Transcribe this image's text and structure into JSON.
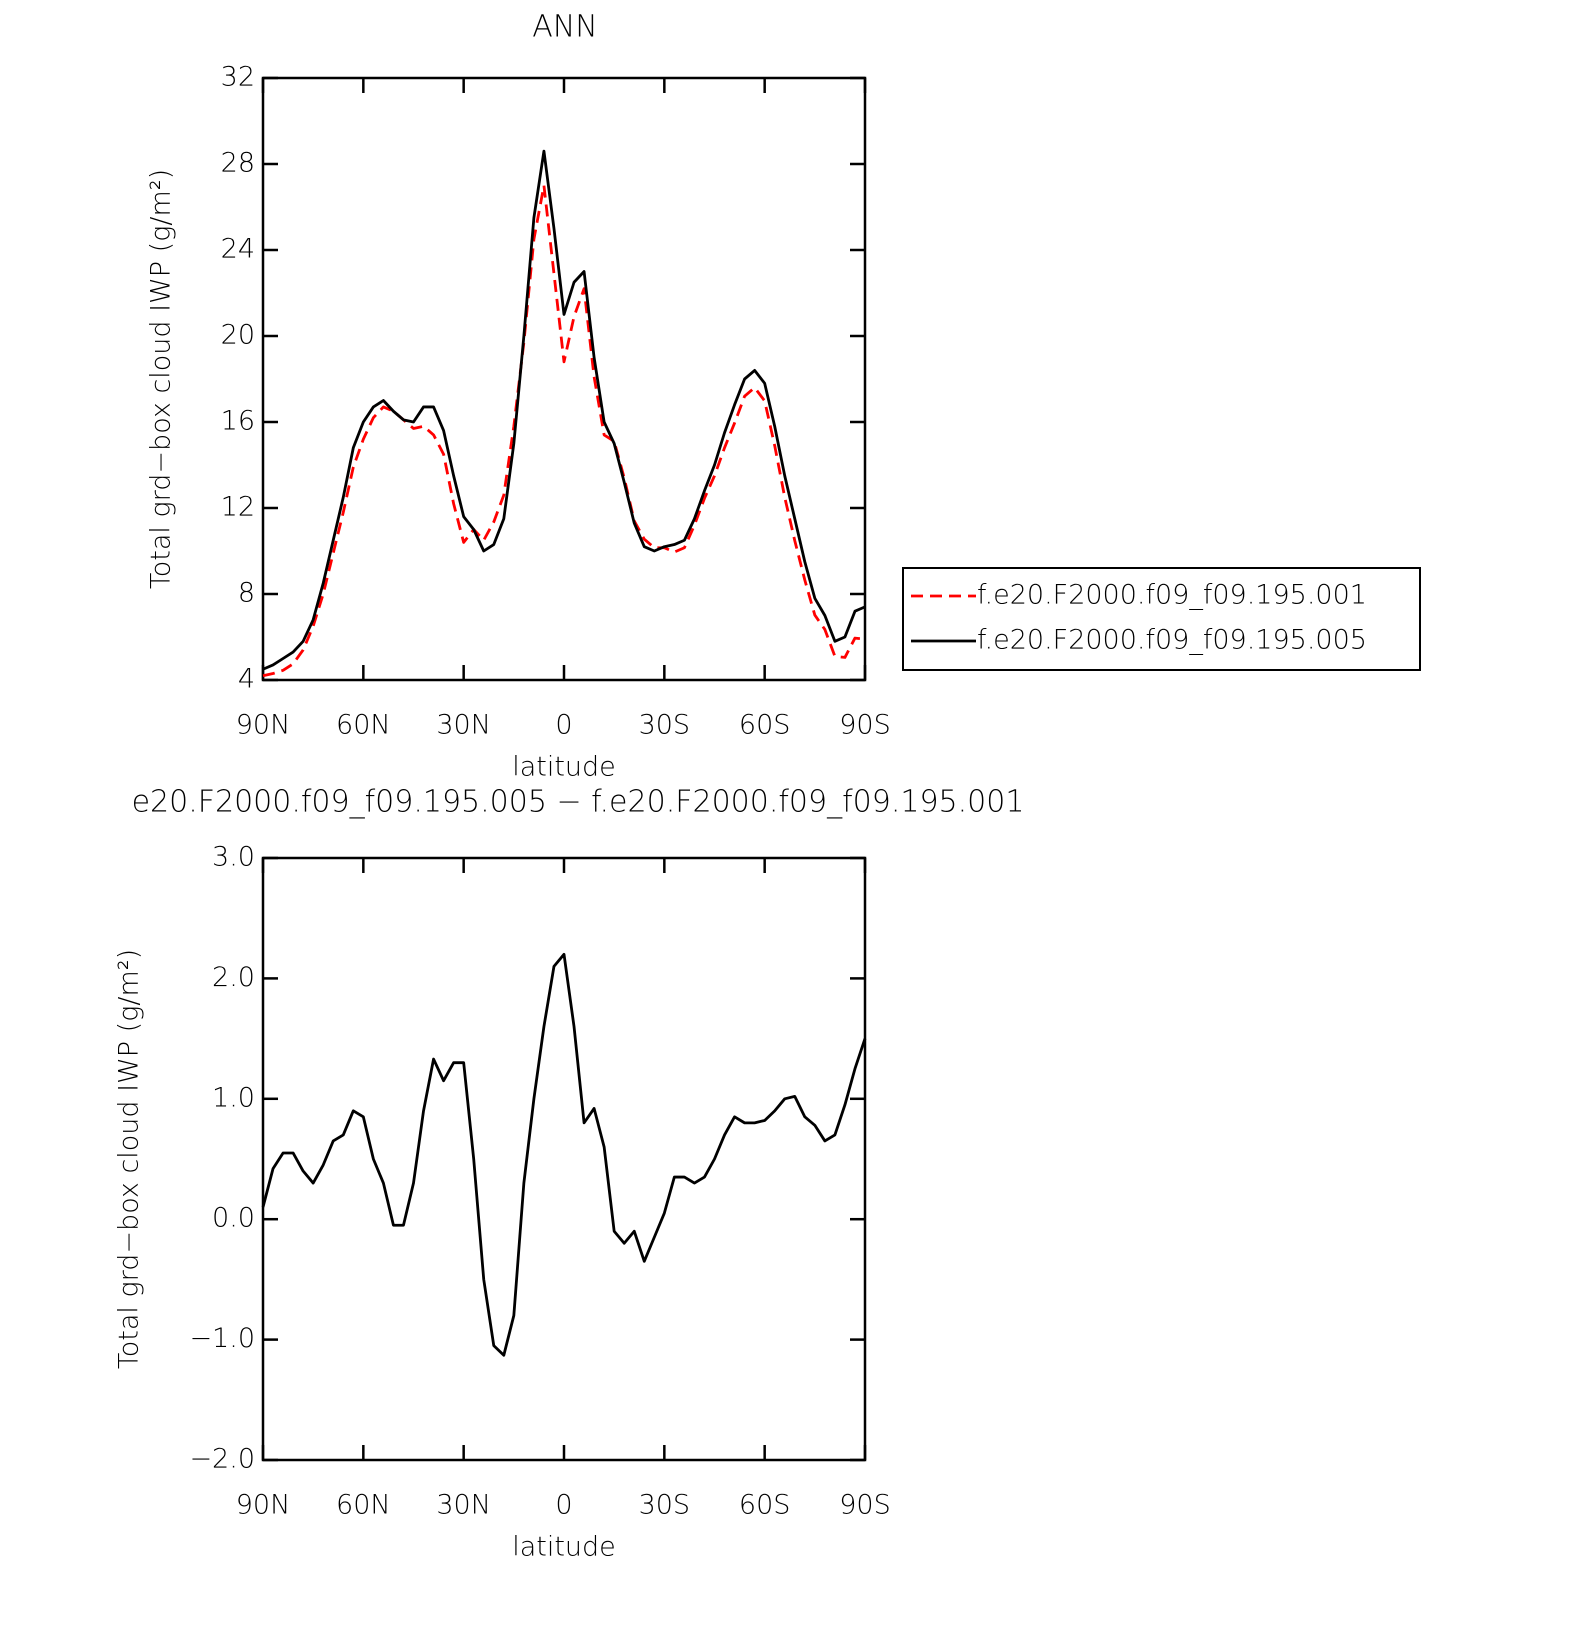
{
  "chart_data": [
    {
      "type": "line",
      "title": "ANN",
      "x_label": "latitude",
      "y_label": "Total grd−box cloud IWP (g/m²)",
      "x": [
        90,
        87,
        84,
        81,
        78,
        75,
        72,
        69,
        66,
        63,
        60,
        57,
        54,
        51,
        48,
        45,
        42,
        39,
        36,
        33,
        30,
        27,
        24,
        21,
        18,
        15,
        12,
        9,
        6,
        3,
        0,
        -3,
        -6,
        -9,
        -12,
        -15,
        -18,
        -21,
        -24,
        -27,
        -30,
        -33,
        -36,
        -39,
        -42,
        -45,
        -48,
        -51,
        -54,
        -57,
        -60,
        -63,
        -66,
        -69,
        -72,
        -75,
        -78,
        -81,
        -84,
        -87,
        -90
      ],
      "xlim": [
        90,
        -90
      ],
      "xticks": [
        {
          "value": 90,
          "label": "90N"
        },
        {
          "value": 60,
          "label": "60N"
        },
        {
          "value": 30,
          "label": "30N"
        },
        0,
        {
          "value": -30,
          "label": "30S"
        },
        {
          "value": -60,
          "label": "60S"
        },
        {
          "value": -90,
          "label": "90S"
        }
      ],
      "ylim": [
        4,
        32
      ],
      "yticks": [
        4,
        8,
        12,
        16,
        20,
        24,
        28,
        32
      ],
      "legend": "right",
      "series": [
        {
          "name": "f.e20.F2000.f09_f09.195.001",
          "color": "#ff0000",
          "dash": "dashed",
          "values": [
            4.2,
            4.3,
            4.45,
            4.75,
            5.4,
            6.5,
            8.0,
            9.9,
            11.8,
            13.9,
            15.2,
            16.2,
            16.7,
            16.5,
            16.1,
            15.7,
            15.8,
            15.4,
            14.5,
            12.2,
            10.4,
            11.0,
            10.5,
            11.35,
            12.6,
            15.8,
            19.7,
            24.5,
            27.0,
            22.9,
            18.8,
            20.9,
            22.2,
            18.1,
            15.4,
            15.1,
            13.4,
            11.4,
            10.55,
            10.15,
            10.15,
            9.95,
            10.15,
            11.2,
            12.45,
            13.5,
            14.8,
            15.95,
            17.2,
            17.6,
            16.98,
            14.9,
            12.5,
            10.48,
            8.65,
            7.02,
            6.35,
            5.1,
            5.05,
            5.95,
            5.9
          ]
        },
        {
          "name": "f.e20.F2000.f09_f09.195.005",
          "color": "#000000",
          "dash": "solid",
          "values": [
            4.5,
            4.7,
            5.0,
            5.3,
            5.8,
            6.8,
            8.5,
            10.5,
            12.5,
            14.8,
            16.0,
            16.7,
            17.0,
            16.5,
            16.1,
            16.0,
            16.7,
            16.7,
            15.6,
            13.5,
            11.6,
            11.0,
            10.0,
            10.3,
            11.5,
            15.0,
            20.0,
            25.5,
            28.6,
            25.0,
            21.0,
            22.5,
            23.0,
            19.0,
            16.0,
            15.0,
            13.2,
            11.3,
            10.2,
            10.0,
            10.2,
            10.3,
            10.5,
            11.5,
            12.8,
            14.0,
            15.5,
            16.8,
            18.0,
            18.4,
            17.8,
            15.8,
            13.5,
            11.5,
            9.5,
            7.8,
            7.0,
            5.8,
            6.0,
            7.2,
            7.4
          ]
        }
      ]
    },
    {
      "type": "line",
      "title": "e20.F2000.f09_f09.195.005 − f.e20.F2000.f09_f09.195.001",
      "x_label": "latitude",
      "y_label": "Total grd−box cloud IWP (g/m²)",
      "x": [
        90,
        87,
        84,
        81,
        78,
        75,
        72,
        69,
        66,
        63,
        60,
        57,
        54,
        51,
        48,
        45,
        42,
        39,
        36,
        33,
        30,
        27,
        24,
        21,
        18,
        15,
        12,
        9,
        6,
        3,
        0,
        -3,
        -6,
        -9,
        -12,
        -15,
        -18,
        -21,
        -24,
        -27,
        -30,
        -33,
        -36,
        -39,
        -42,
        -45,
        -48,
        -51,
        -54,
        -57,
        -60,
        -63,
        -66,
        -69,
        -72,
        -75,
        -78,
        -81,
        -84,
        -87,
        -90
      ],
      "xlim": [
        90,
        -90
      ],
      "xticks": [
        {
          "value": 90,
          "label": "90N"
        },
        {
          "value": 60,
          "label": "60N"
        },
        {
          "value": 30,
          "label": "30N"
        },
        0,
        {
          "value": -30,
          "label": "30S"
        },
        {
          "value": -60,
          "label": "60S"
        },
        {
          "value": -90,
          "label": "90S"
        }
      ],
      "ylim": [
        -2,
        3
      ],
      "yticks": [
        {
          "value": -2,
          "label": "−2.0"
        },
        {
          "value": -1,
          "label": "−1.0"
        },
        {
          "value": 0,
          "label": "0.0"
        },
        {
          "value": 1,
          "label": "1.0"
        },
        {
          "value": 2,
          "label": "2.0"
        },
        {
          "value": 3,
          "label": "3.0"
        }
      ],
      "series": [
        {
          "color": "#000000",
          "dash": "solid",
          "values": [
            0.1,
            0.42,
            0.55,
            0.55,
            0.4,
            0.3,
            0.45,
            0.65,
            0.7,
            0.9,
            0.85,
            0.5,
            0.3,
            -0.05,
            -0.05,
            0.3,
            0.9,
            1.33,
            1.15,
            1.3,
            1.3,
            0.5,
            -0.5,
            -1.05,
            -1.13,
            -0.8,
            0.3,
            1.0,
            1.6,
            2.1,
            2.2,
            1.6,
            0.8,
            0.92,
            0.6,
            -0.1,
            -0.2,
            -0.1,
            -0.35,
            -0.15,
            0.05,
            0.35,
            0.35,
            0.3,
            0.35,
            0.5,
            0.7,
            0.85,
            0.8,
            0.8,
            0.82,
            0.9,
            1.0,
            1.02,
            0.85,
            0.78,
            0.65,
            0.7,
            0.95,
            1.25,
            1.5
          ]
        }
      ]
    }
  ]
}
